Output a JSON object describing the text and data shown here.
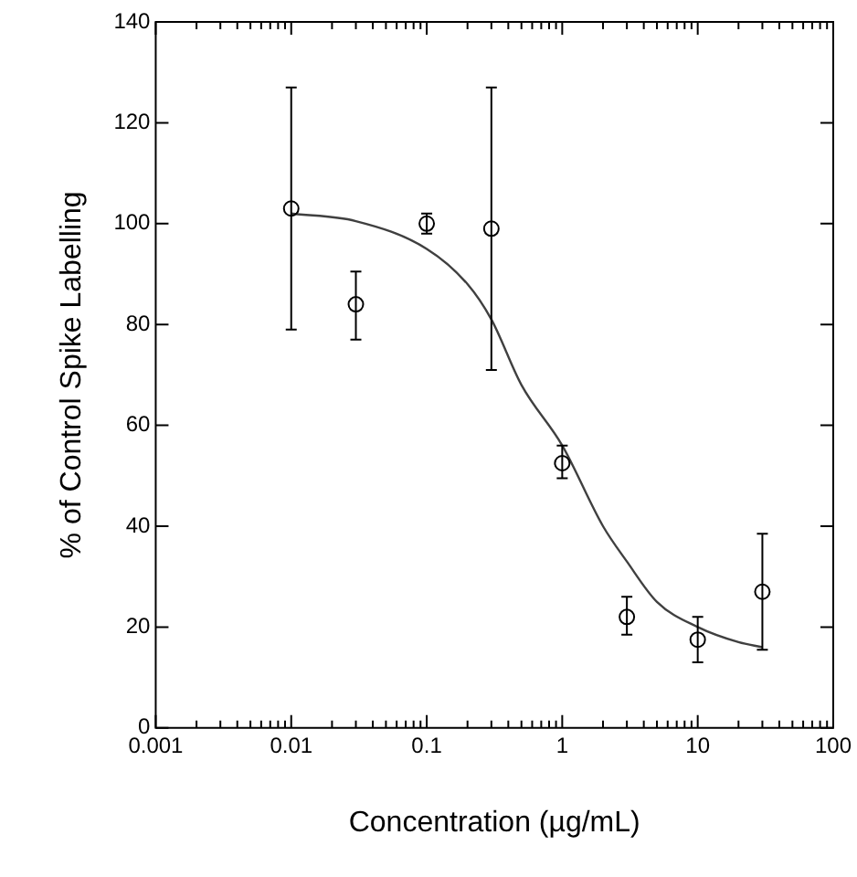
{
  "chart_data": {
    "type": "scatter",
    "xlabel": "Concentration (µg/mL)",
    "ylabel": "% of Control Spike Labelling",
    "log": "x",
    "xlim": [
      0.001,
      100
    ],
    "ylim": [
      0,
      140
    ],
    "xticks": [
      0.001,
      {
        "value": 0.002,
        "label": null
      },
      {
        "value": 0.003,
        "label": null
      },
      {
        "value": 0.004,
        "label": null
      },
      {
        "value": 0.005,
        "label": null
      },
      {
        "value": 0.006,
        "label": null
      },
      {
        "value": 0.007,
        "label": null
      },
      {
        "value": 0.008,
        "label": null
      },
      {
        "value": 0.009,
        "label": null
      },
      0.01,
      {
        "value": 0.02,
        "label": null
      },
      {
        "value": 0.03,
        "label": null
      },
      {
        "value": 0.04,
        "label": null
      },
      {
        "value": 0.05,
        "label": null
      },
      {
        "value": 0.06,
        "label": null
      },
      {
        "value": 0.07,
        "label": null
      },
      {
        "value": 0.08,
        "label": null
      },
      {
        "value": 0.09,
        "label": null
      },
      0.1,
      {
        "value": 0.2,
        "label": null
      },
      {
        "value": 0.3,
        "label": null
      },
      {
        "value": 0.4,
        "label": null
      },
      {
        "value": 0.5,
        "label": null
      },
      {
        "value": 0.6,
        "label": null
      },
      {
        "value": 0.7,
        "label": null
      },
      {
        "value": 0.8,
        "label": null
      },
      {
        "value": 0.9,
        "label": null
      },
      1,
      {
        "value": 2,
        "label": null
      },
      {
        "value": 3,
        "label": null
      },
      {
        "value": 4,
        "label": null
      },
      {
        "value": 5,
        "label": null
      },
      {
        "value": 6,
        "label": null
      },
      {
        "value": 7,
        "label": null
      },
      {
        "value": 8,
        "label": null
      },
      {
        "value": 9,
        "label": null
      },
      10,
      {
        "value": 20,
        "label": null
      },
      {
        "value": 30,
        "label": null
      },
      {
        "value": 40,
        "label": null
      },
      {
        "value": 50,
        "label": null
      },
      {
        "value": 60,
        "label": null
      },
      {
        "value": 70,
        "label": null
      },
      {
        "value": 80,
        "label": null
      },
      {
        "value": 90,
        "label": null
      },
      100
    ],
    "yticks": [
      0,
      20,
      40,
      60,
      80,
      100,
      120,
      140
    ],
    "grid": false,
    "legend": false,
    "series": [
      {
        "color": "#000000",
        "marker": "circle",
        "x": [
          0.01,
          0.03,
          0.1,
          0.3,
          1,
          3,
          10,
          30
        ],
        "values": [
          103,
          84,
          100,
          99,
          52.5,
          22,
          17.5,
          27
        ],
        "errors": [
          [
            79,
            127
          ],
          [
            77,
            90.5
          ],
          [
            98,
            102
          ],
          [
            71,
            127
          ],
          [
            49.5,
            56
          ],
          [
            18.5,
            26
          ],
          [
            13,
            22
          ],
          [
            15.5,
            38.5
          ]
        ]
      },
      {
        "type": "line",
        "color": "#404040",
        "marker": "none",
        "line_style": "solid",
        "x": [
          0.01,
          0.03,
          0.1,
          0.2,
          0.3,
          0.5,
          1,
          2,
          3,
          5,
          10,
          20,
          30
        ],
        "values": [
          102,
          100.5,
          95,
          88,
          81,
          68,
          56,
          40,
          33,
          25,
          20,
          17,
          16
        ]
      }
    ]
  }
}
